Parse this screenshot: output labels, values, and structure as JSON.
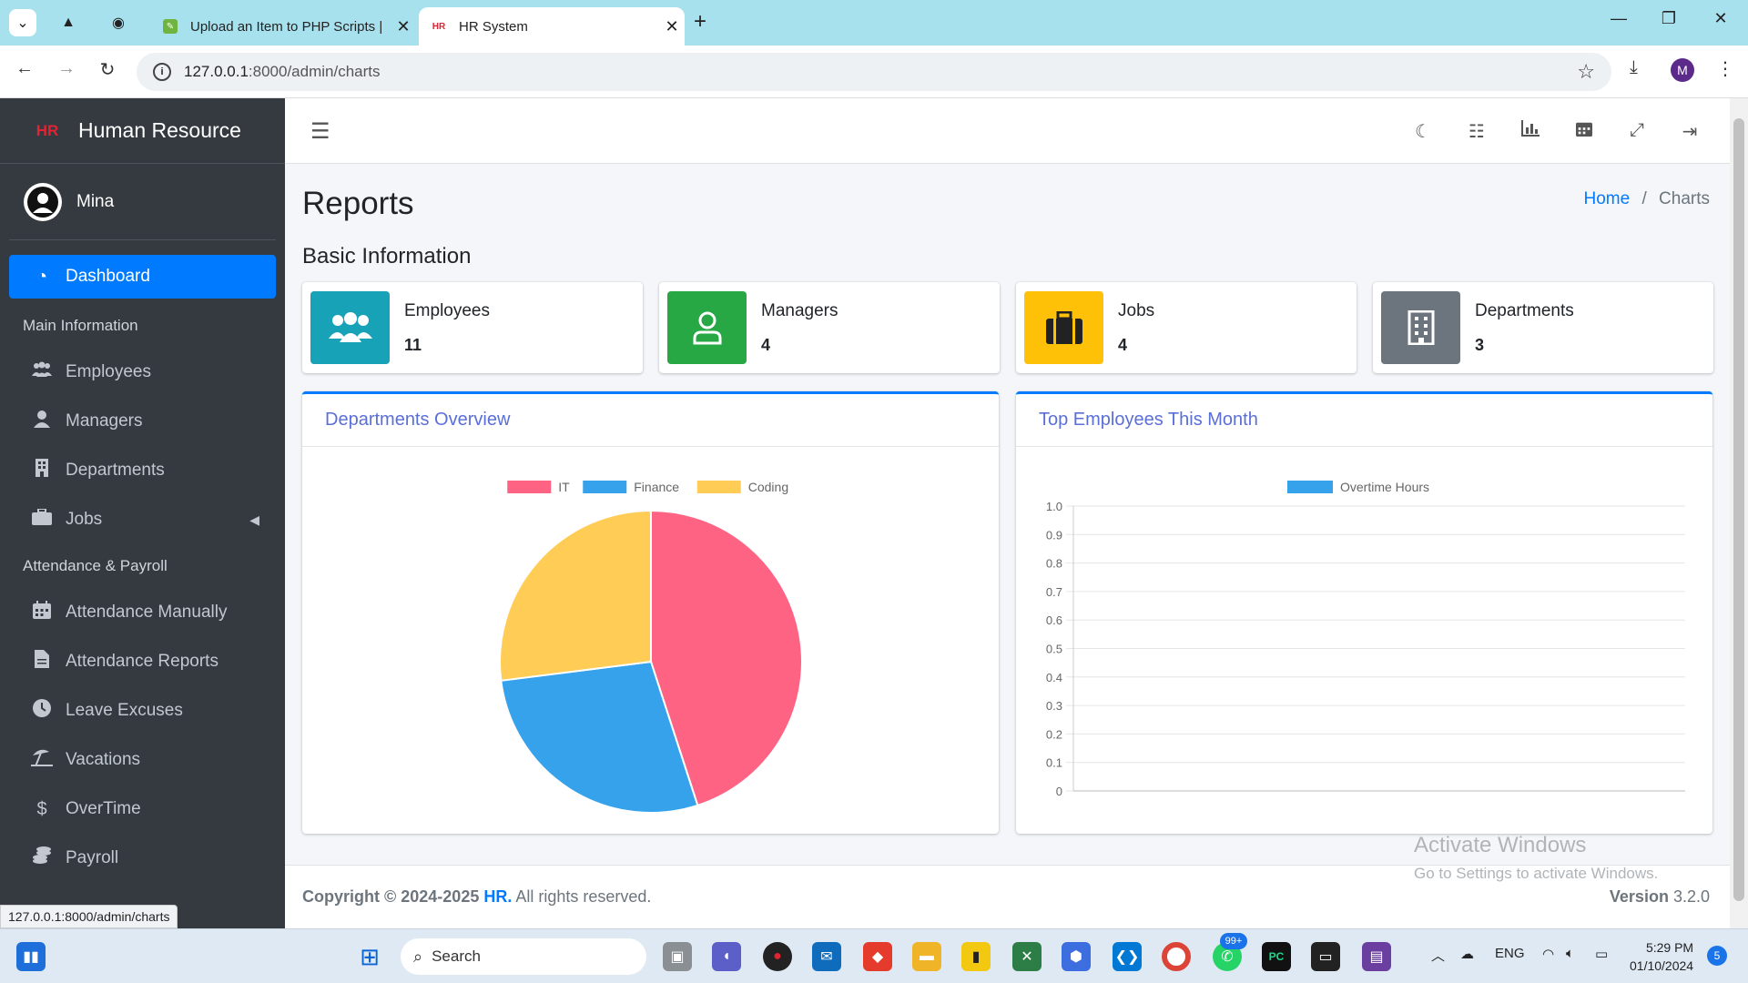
{
  "browser": {
    "tabs": [
      {
        "title": "Upload an Item to PHP Scripts |",
        "active": false
      },
      {
        "title": "HR System",
        "active": true
      }
    ],
    "url": "127.0.0.1:8000/admin/charts",
    "url_host": "127.0.0.1",
    "url_rest": ":8000/admin/charts",
    "profile_initial": "M",
    "status_url": "127.0.0.1:8000/admin/charts"
  },
  "sidebar": {
    "brand": "Human Resource",
    "logo": "HR",
    "user": "Mina",
    "dashboard": "Dashboard",
    "section_main": "Main Information",
    "main_items": [
      {
        "label": "Employees",
        "icon": "users-icon"
      },
      {
        "label": "Managers",
        "icon": "user-icon"
      },
      {
        "label": "Departments",
        "icon": "building-icon"
      },
      {
        "label": "Jobs",
        "icon": "briefcase-icon"
      }
    ],
    "section_attendance": "Attendance & Payroll",
    "attendance_items": [
      {
        "label": "Attendance Manually",
        "icon": "calendar-icon"
      },
      {
        "label": "Attendance Reports",
        "icon": "file-icon"
      },
      {
        "label": "Leave Excuses",
        "icon": "clock-icon"
      },
      {
        "label": "Vacations",
        "icon": "umbrella-beach-icon"
      },
      {
        "label": "OverTime",
        "icon": "dollar-icon"
      },
      {
        "label": "Payroll",
        "icon": "coins-icon"
      }
    ]
  },
  "header": {
    "title": "Reports",
    "breadcrumb_home": "Home",
    "breadcrumb_sep": "/",
    "breadcrumb_current": "Charts"
  },
  "basic_info": {
    "title": "Basic Information",
    "boxes": [
      {
        "label": "Employees",
        "value": "11",
        "color": "#17a2b8",
        "icon": "users-icon"
      },
      {
        "label": "Managers",
        "value": "4",
        "color": "#28a745",
        "icon": "user-icon"
      },
      {
        "label": "Jobs",
        "value": "4",
        "color": "#ffc107",
        "icon": "briefcase-icon"
      },
      {
        "label": "Departments",
        "value": "3",
        "color": "#6c757d",
        "icon": "building-icon"
      }
    ]
  },
  "cards": {
    "departments_title": "Departments Overview",
    "top_employees_title": "Top Employees This Month"
  },
  "chart_data": [
    {
      "type": "pie",
      "title": "Departments Overview",
      "categories": [
        "IT",
        "Finance",
        "Coding"
      ],
      "values": [
        45,
        28,
        27
      ],
      "colors": [
        "#ff6384",
        "#36a2eb",
        "#ffcd56"
      ],
      "legend": "top"
    },
    {
      "type": "bar",
      "title": "Top Employees This Month",
      "categories": [],
      "series": [
        {
          "name": "Overtime Hours",
          "values": [],
          "color": "#36a2eb"
        }
      ],
      "ylim": [
        0,
        1
      ],
      "yticks": [
        "1.0",
        "0.9",
        "0.8",
        "0.7",
        "0.6",
        "0.5",
        "0.4",
        "0.3",
        "0.2",
        "0.1",
        "0"
      ],
      "grid": true,
      "legend": "top"
    }
  ],
  "footer": {
    "copyright_prefix": "Copyright © 2024-2025",
    "brand": "HR.",
    "rights": "All rights reserved.",
    "version_label": "Version",
    "version": "3.2.0"
  },
  "watermark": {
    "line1": "Activate Windows",
    "line2": "Go to Settings to activate Windows."
  },
  "taskbar": {
    "search_placeholder": "Search",
    "lang": "ENG",
    "time": "5:29 PM",
    "date": "01/10/2024",
    "badge": "99+",
    "notif_count": "5"
  }
}
